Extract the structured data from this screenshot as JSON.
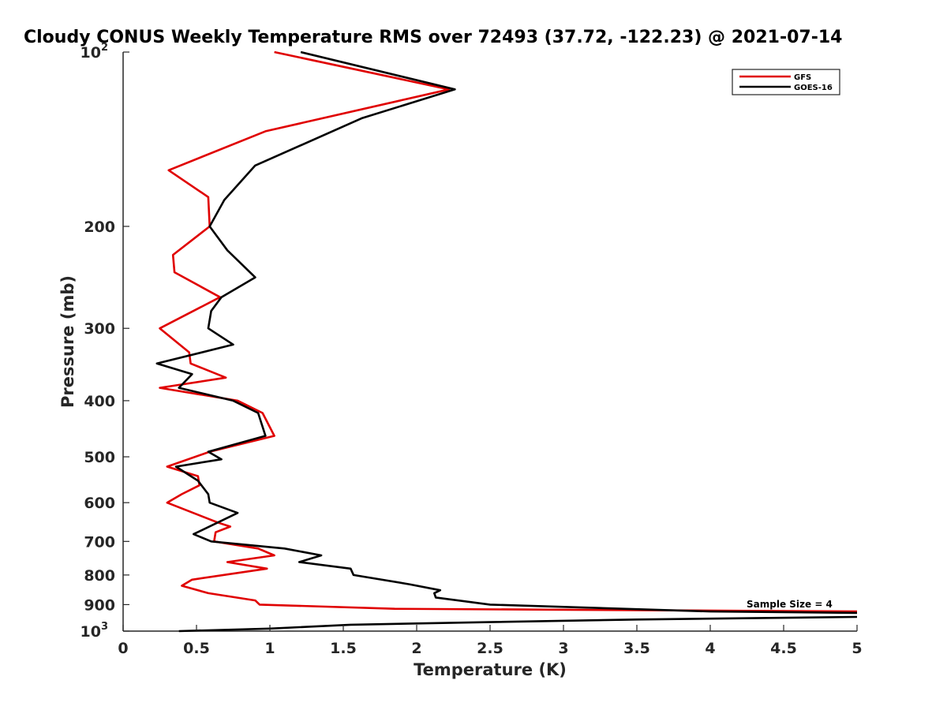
{
  "chart_data": {
    "type": "line",
    "title": "Cloudy CONUS Weekly Temperature RMS over 72493 (37.72, -122.23) @ 2021-07-14",
    "xlabel": "Temperature (K)",
    "ylabel": "Pressure (mb)",
    "xlim": [
      0,
      5
    ],
    "ylim": [
      100,
      1000
    ],
    "y_scale": "log",
    "y_reversed": true,
    "x_ticks": [
      "0",
      "0.5",
      "1",
      "1.5",
      "2",
      "2.5",
      "3",
      "3.5",
      "4",
      "4.5",
      "5"
    ],
    "y_ticks": [
      {
        "value": 100,
        "base": "10",
        "exp": "2"
      },
      {
        "value": 200,
        "label": "200"
      },
      {
        "value": 300,
        "label": "300"
      },
      {
        "value": 400,
        "label": "400"
      },
      {
        "value": 500,
        "label": "500"
      },
      {
        "value": 600,
        "label": "600"
      },
      {
        "value": 700,
        "label": "700"
      },
      {
        "value": 800,
        "label": "800"
      },
      {
        "value": 900,
        "label": "900"
      },
      {
        "value": 1000,
        "base": "10",
        "exp": "3"
      }
    ],
    "grid": false,
    "legend_position": "top-right",
    "annotation": "Sample Size = 4",
    "series": [
      {
        "name": "GFS",
        "color": "#e00000",
        "points": [
          [
            1.03,
            100
          ],
          [
            2.22,
            116
          ],
          [
            0.97,
            137
          ],
          [
            0.31,
            160
          ],
          [
            0.58,
            178
          ],
          [
            0.59,
            200
          ],
          [
            0.34,
            224
          ],
          [
            0.35,
            240
          ],
          [
            0.66,
            265
          ],
          [
            0.25,
            300
          ],
          [
            0.45,
            330
          ],
          [
            0.46,
            345
          ],
          [
            0.7,
            365
          ],
          [
            0.25,
            380
          ],
          [
            0.78,
            400
          ],
          [
            0.95,
            420
          ],
          [
            1.03,
            460
          ],
          [
            0.59,
            490
          ],
          [
            0.3,
            520
          ],
          [
            0.51,
            540
          ],
          [
            0.52,
            560
          ],
          [
            0.4,
            580
          ],
          [
            0.3,
            600
          ],
          [
            0.65,
            650
          ],
          [
            0.73,
            660
          ],
          [
            0.63,
            675
          ],
          [
            0.62,
            700
          ],
          [
            0.92,
            720
          ],
          [
            1.03,
            740
          ],
          [
            0.71,
            760
          ],
          [
            0.98,
            780
          ],
          [
            0.47,
            815
          ],
          [
            0.4,
            835
          ],
          [
            0.58,
            860
          ],
          [
            0.9,
            885
          ],
          [
            0.93,
            900
          ],
          [
            1.85,
            915
          ],
          [
            5.0,
            925
          ]
        ]
      },
      {
        "name": "GOES-16",
        "color": "#000000",
        "points": [
          [
            1.21,
            100
          ],
          [
            2.26,
            116
          ],
          [
            1.63,
            130
          ],
          [
            0.9,
            157
          ],
          [
            0.69,
            180
          ],
          [
            0.59,
            200
          ],
          [
            0.71,
            220
          ],
          [
            0.9,
            245
          ],
          [
            0.67,
            265
          ],
          [
            0.6,
            280
          ],
          [
            0.58,
            300
          ],
          [
            0.75,
            320
          ],
          [
            0.23,
            345
          ],
          [
            0.47,
            360
          ],
          [
            0.38,
            380
          ],
          [
            0.75,
            400
          ],
          [
            0.92,
            420
          ],
          [
            0.97,
            460
          ],
          [
            0.58,
            490
          ],
          [
            0.67,
            505
          ],
          [
            0.36,
            520
          ],
          [
            0.51,
            550
          ],
          [
            0.58,
            580
          ],
          [
            0.59,
            600
          ],
          [
            0.78,
            625
          ],
          [
            0.48,
            680
          ],
          [
            0.6,
            700
          ],
          [
            1.1,
            720
          ],
          [
            1.35,
            740
          ],
          [
            1.2,
            760
          ],
          [
            1.55,
            780
          ],
          [
            1.57,
            800
          ],
          [
            1.95,
            830
          ],
          [
            2.16,
            850
          ],
          [
            2.12,
            860
          ],
          [
            2.13,
            875
          ],
          [
            2.5,
            900
          ],
          [
            4.0,
            925
          ],
          [
            5.0,
            930
          ]
        ]
      },
      {
        "name": "",
        "color": "#000000",
        "points": [
          [
            0.38,
            1000
          ],
          [
            1.0,
            990
          ],
          [
            1.55,
            975
          ],
          [
            2.5,
            965
          ],
          [
            3.5,
            955
          ],
          [
            5.0,
            945
          ]
        ]
      }
    ]
  }
}
